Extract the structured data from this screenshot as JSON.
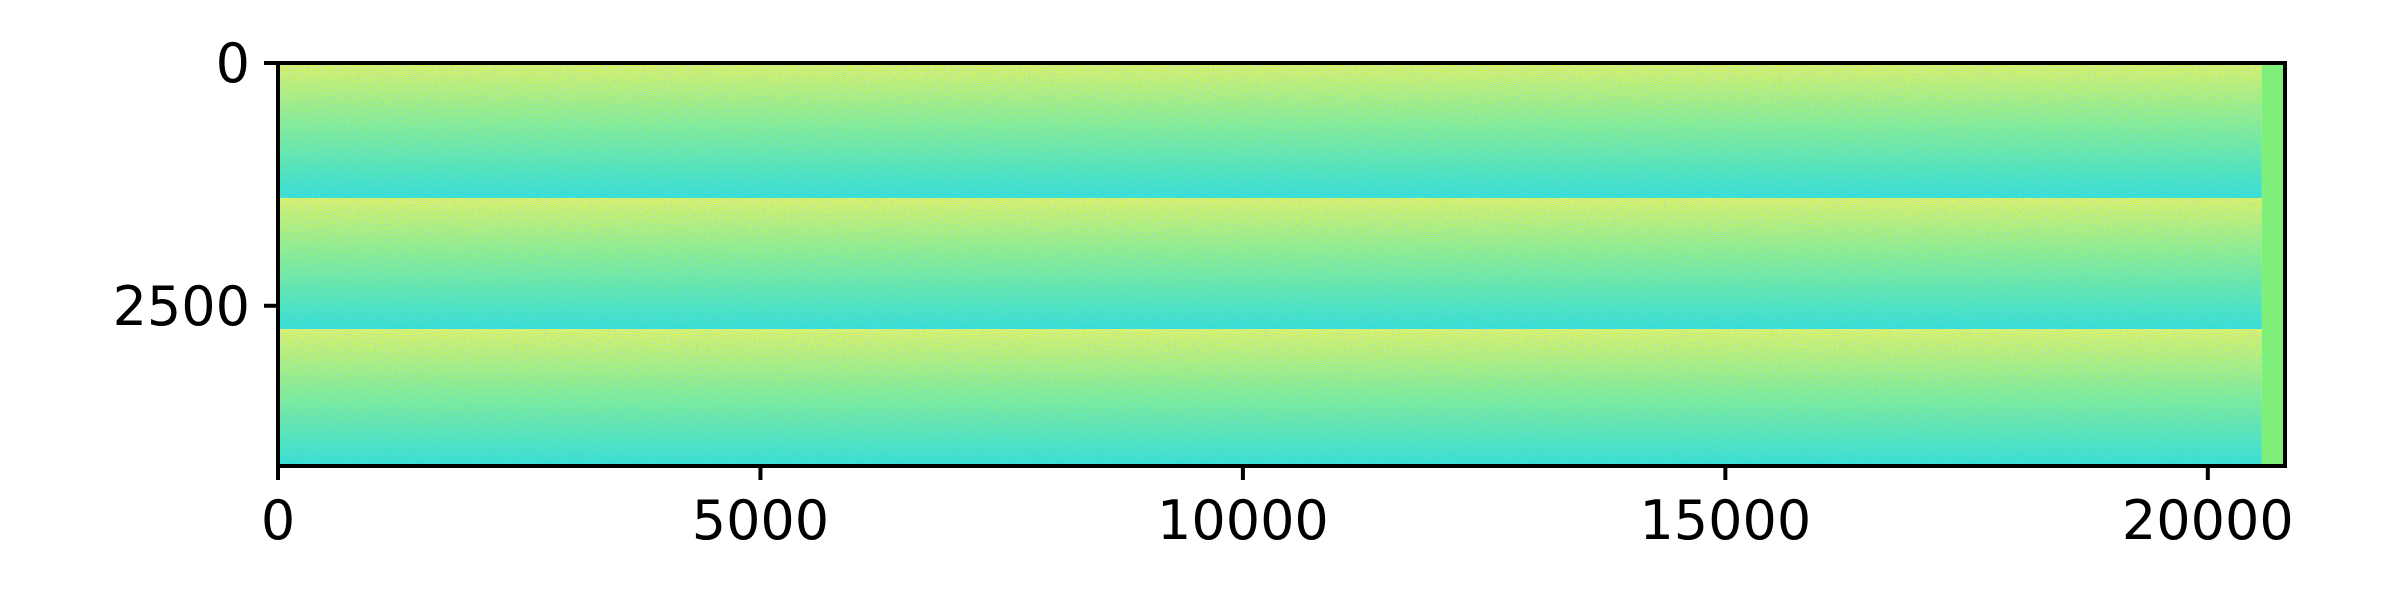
{
  "chart_data": {
    "type": "heatmap",
    "title": "",
    "xlabel": "",
    "ylabel": "",
    "xlim": [
      0,
      20800
    ],
    "ylim": [
      4150,
      0
    ],
    "x_ticks": [
      0,
      5000,
      10000,
      15000,
      20000
    ],
    "x_tick_labels": [
      "0",
      "5000",
      "10000",
      "15000",
      "20000"
    ],
    "y_ticks": [
      0,
      2500
    ],
    "y_tick_labels": [
      "0",
      "2500"
    ],
    "image_extent_x": [
      0,
      20800
    ],
    "image_extent_y": [
      0,
      4150
    ],
    "bands": [
      {
        "y_start": 0,
        "y_end": 1390,
        "pattern": "noise, brighter (yellow) at top, fading to cyan at bottom"
      },
      {
        "y_start": 1390,
        "y_end": 2740,
        "pattern": "noise, brighter (yellow) at top, fading to cyan at bottom"
      },
      {
        "y_start": 2740,
        "y_end": 4150,
        "pattern": "noise, brighter (yellow) at top, fading to cyan at bottom"
      }
    ],
    "edge_column": {
      "x_start": 20560,
      "x_end": 20800,
      "color": "#7ef07a"
    },
    "colormap": "jet-like (cyan to yellow)",
    "colors": {
      "high": "#e8f53a",
      "mid": "#8ef07a",
      "low": "#2ee0d0",
      "deep_low": "#1fa8e8"
    },
    "grid": false,
    "legend": "none"
  }
}
